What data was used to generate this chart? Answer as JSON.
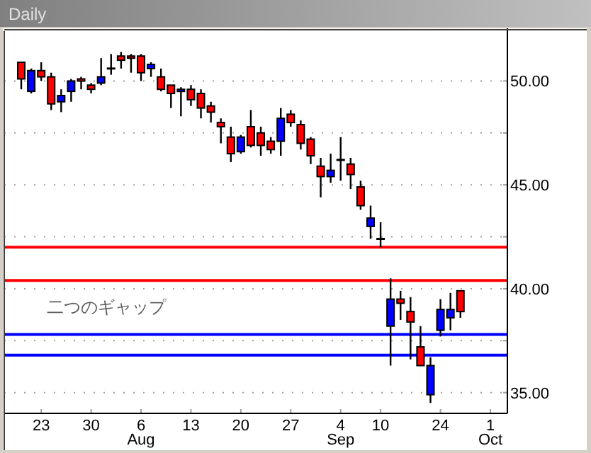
{
  "chart_data": {
    "type": "candlestick",
    "title": "Daily",
    "categories": [
      null,
      null,
      "23",
      null,
      null,
      null,
      null,
      "30",
      null,
      null,
      null,
      null,
      "6 Aug",
      null,
      null,
      null,
      null,
      "13",
      null,
      null,
      null,
      null,
      "20",
      null,
      null,
      null,
      null,
      "27",
      null,
      null,
      null,
      null,
      "4 Sep",
      null,
      null,
      null,
      "10",
      null,
      null,
      null,
      null,
      null,
      "24",
      null,
      null,
      null,
      null,
      "1 Oct"
    ],
    "ohlc": [
      [
        50.9,
        50.9,
        49.6,
        50.1
      ],
      [
        49.5,
        50.6,
        49.4,
        50.5
      ],
      [
        50.5,
        50.9,
        50.0,
        50.2
      ],
      [
        50.2,
        50.4,
        48.6,
        48.9
      ],
      [
        49.0,
        49.6,
        48.5,
        49.3
      ],
      [
        49.5,
        50.1,
        49.0,
        50.0
      ],
      [
        50.1,
        50.2,
        49.6,
        50.0
      ],
      [
        49.8,
        49.9,
        49.4,
        49.6
      ],
      [
        49.9,
        51.1,
        49.8,
        50.2
      ],
      [
        50.6,
        51.3,
        50.3,
        50.6
      ],
      [
        51.2,
        51.4,
        50.6,
        51.0
      ],
      [
        51.2,
        51.3,
        50.4,
        51.1
      ],
      [
        51.2,
        51.3,
        50.0,
        50.4
      ],
      [
        50.6,
        50.9,
        50.2,
        50.8
      ],
      [
        50.2,
        50.6,
        49.5,
        49.6
      ],
      [
        49.8,
        49.8,
        48.7,
        49.4
      ],
      [
        49.5,
        49.7,
        48.3,
        49.6
      ],
      [
        49.6,
        49.8,
        48.8,
        49.1
      ],
      [
        49.4,
        49.6,
        48.2,
        48.7
      ],
      [
        48.8,
        49.0,
        48.0,
        48.5
      ],
      [
        48.0,
        48.2,
        47.0,
        47.8
      ],
      [
        47.3,
        47.8,
        46.1,
        46.5
      ],
      [
        46.6,
        47.4,
        46.5,
        47.3
      ],
      [
        47.8,
        48.6,
        46.8,
        46.9
      ],
      [
        47.5,
        47.8,
        46.4,
        46.9
      ],
      [
        47.1,
        47.3,
        46.5,
        46.7
      ],
      [
        47.1,
        48.7,
        46.4,
        48.2
      ],
      [
        48.4,
        48.6,
        47.8,
        48.0
      ],
      [
        47.9,
        48.1,
        46.7,
        47.0
      ],
      [
        47.2,
        47.3,
        46.0,
        46.4
      ],
      [
        45.9,
        46.3,
        44.4,
        45.4
      ],
      [
        45.4,
        46.5,
        45.1,
        45.7
      ],
      [
        46.2,
        47.3,
        45.2,
        46.2
      ],
      [
        46.0,
        46.3,
        44.8,
        45.5
      ],
      [
        44.9,
        45.2,
        43.8,
        44.0
      ],
      [
        43.0,
        44.0,
        42.4,
        43.4
      ],
      [
        42.4,
        43.2,
        42.0,
        42.4
      ],
      [
        38.2,
        40.5,
        36.3,
        39.5
      ],
      [
        39.5,
        39.9,
        38.5,
        39.3
      ],
      [
        38.9,
        39.6,
        36.6,
        38.4
      ],
      [
        37.2,
        38.2,
        36.3,
        36.3
      ],
      [
        34.9,
        36.7,
        34.5,
        36.3
      ],
      [
        38.0,
        39.5,
        37.7,
        39.0
      ],
      [
        38.6,
        39.8,
        38.0,
        39.0
      ],
      [
        39.9,
        39.9,
        38.6,
        38.9
      ],
      null,
      null,
      null
    ],
    "colors": [
      "#ff0000",
      "#0000ff",
      "#ff0000",
      "#ff0000",
      "#0000ff",
      "#0000ff",
      "#ff0000",
      "#ff0000",
      "#0000ff",
      "#000000",
      "#ff0000",
      "#ff0000",
      "#ff0000",
      "#0000ff",
      "#ff0000",
      "#ff0000",
      "#0000ff",
      "#ff0000",
      "#ff0000",
      "#ff0000",
      "#ff0000",
      "#ff0000",
      "#0000ff",
      "#ff0000",
      "#ff0000",
      "#ff0000",
      "#0000ff",
      "#ff0000",
      "#ff0000",
      "#ff0000",
      "#ff0000",
      "#0000ff",
      "#000000",
      "#ff0000",
      "#ff0000",
      "#0000ff",
      "#000000",
      "#0000ff",
      "#ff0000",
      "#ff0000",
      "#ff0000",
      "#0000ff",
      "#0000ff",
      "#0000ff",
      "#ff0000",
      null,
      null,
      null
    ],
    "ylim": [
      34,
      52.4
    ],
    "yticks": [
      {
        "value": 35,
        "label": "35.00"
      },
      {
        "value": 37.5,
        "label": null
      },
      {
        "value": 40,
        "label": "40.00"
      },
      {
        "value": 42.5,
        "label": null
      },
      {
        "value": 45,
        "label": "45.00"
      },
      {
        "value": 47.5,
        "label": null
      },
      {
        "value": 50,
        "label": "50.00"
      }
    ],
    "grid": "y",
    "ref_lines": [
      {
        "axis": "y",
        "value": 42.0,
        "color": "#ff0000"
      },
      {
        "axis": "y",
        "value": 40.4,
        "color": "#ff0000"
      },
      {
        "axis": "y",
        "value": 37.8,
        "color": "#0000ff"
      },
      {
        "axis": "y",
        "value": 36.8,
        "color": "#0000ff"
      }
    ],
    "annotations": [
      "二つのギャップ"
    ]
  }
}
